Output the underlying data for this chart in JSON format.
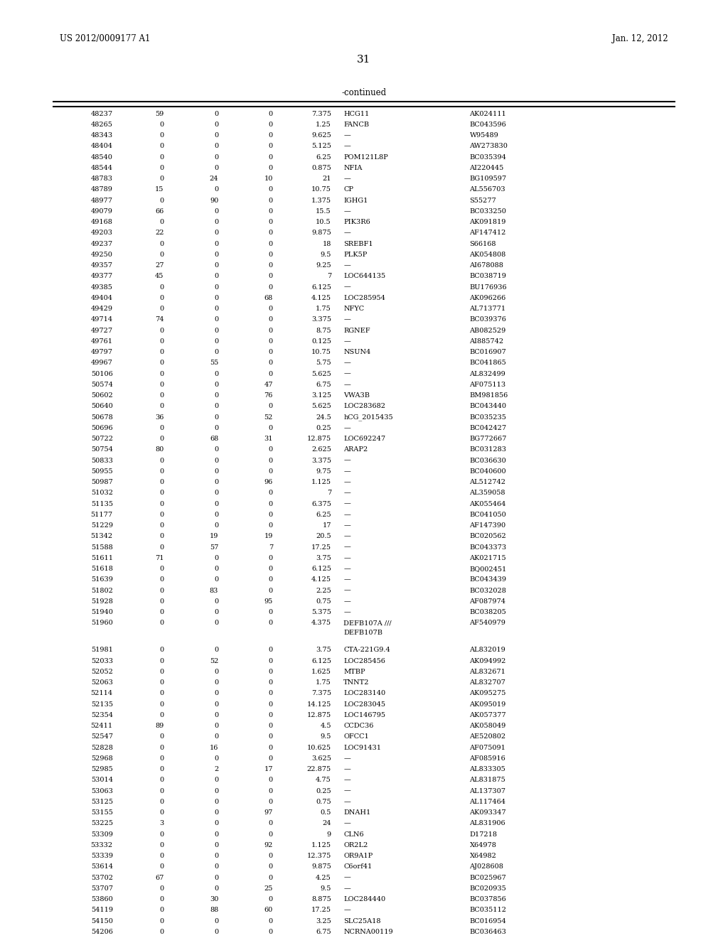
{
  "header_left": "US 2012/0009177 A1",
  "header_right": "Jan. 12, 2012",
  "page_number": "31",
  "continued_label": "-continued",
  "bg_color": "#ffffff",
  "text_color": "#000000",
  "rows": [
    [
      "48237",
      "59",
      "0",
      "0",
      "7.375",
      "HCG11",
      "AK024111"
    ],
    [
      "48265",
      "0",
      "0",
      "0",
      "1.25",
      "FANCB",
      "BC043596"
    ],
    [
      "48343",
      "0",
      "0",
      "0",
      "9.625",
      "—",
      "W95489"
    ],
    [
      "48404",
      "0",
      "0",
      "0",
      "5.125",
      "—",
      "AW273830"
    ],
    [
      "48540",
      "0",
      "0",
      "0",
      "6.25",
      "POM121L8P",
      "BC035394"
    ],
    [
      "48544",
      "0",
      "0",
      "0",
      "0.875",
      "NFIA",
      "AI220445"
    ],
    [
      "48783",
      "0",
      "24",
      "10",
      "21",
      "—",
      "BG109597"
    ],
    [
      "48789",
      "15",
      "0",
      "0",
      "10.75",
      "CP",
      "AL556703"
    ],
    [
      "48977",
      "0",
      "90",
      "0",
      "1.375",
      "IGHG1",
      "S55277"
    ],
    [
      "49079",
      "66",
      "0",
      "0",
      "15.5",
      "—",
      "BC033250"
    ],
    [
      "49168",
      "0",
      "0",
      "0",
      "10.5",
      "PIK3R6",
      "AK091819"
    ],
    [
      "49203",
      "22",
      "0",
      "0",
      "9.875",
      "—",
      "AF147412"
    ],
    [
      "49237",
      "0",
      "0",
      "0",
      "18",
      "SREBF1",
      "S66168"
    ],
    [
      "49250",
      "0",
      "0",
      "0",
      "9.5",
      "PLK5P",
      "AK054808"
    ],
    [
      "49357",
      "27",
      "0",
      "0",
      "9.25",
      "—",
      "AI678088"
    ],
    [
      "49377",
      "45",
      "0",
      "0",
      "7",
      "LOC644135",
      "BC038719"
    ],
    [
      "49385",
      "0",
      "0",
      "0",
      "6.125",
      "—",
      "BU176936"
    ],
    [
      "49404",
      "0",
      "0",
      "68",
      "4.125",
      "LOC285954",
      "AK096266"
    ],
    [
      "49429",
      "0",
      "0",
      "0",
      "1.75",
      "NFYC",
      "AL713771"
    ],
    [
      "49714",
      "74",
      "0",
      "0",
      "3.375",
      "—",
      "BC039376"
    ],
    [
      "49727",
      "0",
      "0",
      "0",
      "8.75",
      "RGNEF",
      "AB082529"
    ],
    [
      "49761",
      "0",
      "0",
      "0",
      "0.125",
      "—",
      "AI885742"
    ],
    [
      "49797",
      "0",
      "0",
      "0",
      "10.75",
      "NSUN4",
      "BC016907"
    ],
    [
      "49967",
      "0",
      "55",
      "0",
      "5.75",
      "—",
      "BC041865"
    ],
    [
      "50106",
      "0",
      "0",
      "0",
      "5.625",
      "—",
      "AL832499"
    ],
    [
      "50574",
      "0",
      "0",
      "47",
      "6.75",
      "—",
      "AF075113"
    ],
    [
      "50602",
      "0",
      "0",
      "76",
      "3.125",
      "VWA3B",
      "BM981856"
    ],
    [
      "50640",
      "0",
      "0",
      "0",
      "5.625",
      "LOC283682",
      "BC043440"
    ],
    [
      "50678",
      "36",
      "0",
      "52",
      "24.5",
      "hCG_2015435",
      "BC035235"
    ],
    [
      "50696",
      "0",
      "0",
      "0",
      "0.25",
      "—",
      "BC042427"
    ],
    [
      "50722",
      "0",
      "68",
      "31",
      "12.875",
      "LOC692247",
      "BG772667"
    ],
    [
      "50754",
      "80",
      "0",
      "0",
      "2.625",
      "ARAP2",
      "BC031283"
    ],
    [
      "50833",
      "0",
      "0",
      "0",
      "3.375",
      "—",
      "BC036630"
    ],
    [
      "50955",
      "0",
      "0",
      "0",
      "9.75",
      "—",
      "BC040600"
    ],
    [
      "50987",
      "0",
      "0",
      "96",
      "1.125",
      "—",
      "AL512742"
    ],
    [
      "51032",
      "0",
      "0",
      "0",
      "7",
      "—",
      "AL359058"
    ],
    [
      "51135",
      "0",
      "0",
      "0",
      "6.375",
      "—",
      "AK055464"
    ],
    [
      "51177",
      "0",
      "0",
      "0",
      "6.25",
      "—",
      "BC041050"
    ],
    [
      "51229",
      "0",
      "0",
      "0",
      "17",
      "—",
      "AF147390"
    ],
    [
      "51342",
      "0",
      "19",
      "19",
      "20.5",
      "—",
      "BC020562"
    ],
    [
      "51588",
      "0",
      "57",
      "7",
      "17.25",
      "—",
      "BC043373"
    ],
    [
      "51611",
      "71",
      "0",
      "0",
      "3.75",
      "—",
      "AK021715"
    ],
    [
      "51618",
      "0",
      "0",
      "0",
      "6.125",
      "—",
      "BQ002451"
    ],
    [
      "51639",
      "0",
      "0",
      "0",
      "4.125",
      "—",
      "BC043439"
    ],
    [
      "51802",
      "0",
      "83",
      "0",
      "2.25",
      "—",
      "BC032028"
    ],
    [
      "51928",
      "0",
      "0",
      "95",
      "0.75",
      "—",
      "AF087974"
    ],
    [
      "51940",
      "0",
      "0",
      "0",
      "5.375",
      "—",
      "BC038205"
    ],
    [
      "51960",
      "0",
      "0",
      "0",
      "4.375",
      "DEFB107A /// DEFB107B",
      "AF540979"
    ],
    [
      "51981",
      "0",
      "0",
      "0",
      "3.75",
      "CTA-221G9.4",
      "AL832019"
    ],
    [
      "52033",
      "0",
      "52",
      "0",
      "6.125",
      "LOC285456",
      "AK094992"
    ],
    [
      "52052",
      "0",
      "0",
      "0",
      "1.625",
      "MTBP",
      "AL832671"
    ],
    [
      "52063",
      "0",
      "0",
      "0",
      "1.75",
      "TNNT2",
      "AL832707"
    ],
    [
      "52114",
      "0",
      "0",
      "0",
      "7.375",
      "LOC283140",
      "AK095275"
    ],
    [
      "52135",
      "0",
      "0",
      "0",
      "14.125",
      "LOC283045",
      "AK095019"
    ],
    [
      "52354",
      "0",
      "0",
      "0",
      "12.875",
      "LOC146795",
      "AK057377"
    ],
    [
      "52411",
      "89",
      "0",
      "0",
      "4.5",
      "CCDC36",
      "AK058049"
    ],
    [
      "52547",
      "0",
      "0",
      "0",
      "9.5",
      "OFCC1",
      "AE520802"
    ],
    [
      "52828",
      "0",
      "16",
      "0",
      "10.625",
      "LOC91431",
      "AF075091"
    ],
    [
      "52968",
      "0",
      "0",
      "0",
      "3.625",
      "—",
      "AF085916"
    ],
    [
      "52985",
      "0",
      "2",
      "17",
      "22.875",
      "—",
      "AL833305"
    ],
    [
      "53014",
      "0",
      "0",
      "0",
      "4.75",
      "—",
      "AL831875"
    ],
    [
      "53063",
      "0",
      "0",
      "0",
      "0.25",
      "—",
      "AL137307"
    ],
    [
      "53125",
      "0",
      "0",
      "0",
      "0.75",
      "—",
      "AL117464"
    ],
    [
      "53155",
      "0",
      "0",
      "97",
      "0.5",
      "DNAH1",
      "AK093347"
    ],
    [
      "53225",
      "3",
      "0",
      "0",
      "24",
      "—",
      "AL831906"
    ],
    [
      "53309",
      "0",
      "0",
      "0",
      "9",
      "CLN6",
      "D17218"
    ],
    [
      "53332",
      "0",
      "0",
      "92",
      "1.125",
      "OR2L2",
      "X64978"
    ],
    [
      "53339",
      "0",
      "0",
      "0",
      "12.375",
      "OR9A1P",
      "X64982"
    ],
    [
      "53614",
      "0",
      "0",
      "0",
      "9.875",
      "C6orf41",
      "AJ028608"
    ],
    [
      "53702",
      "67",
      "0",
      "0",
      "4.25",
      "—",
      "BC025967"
    ],
    [
      "53707",
      "0",
      "0",
      "25",
      "9.5",
      "—",
      "BC020935"
    ],
    [
      "53860",
      "0",
      "30",
      "0",
      "8.875",
      "LOC284440",
      "BC037856"
    ],
    [
      "54119",
      "0",
      "88",
      "60",
      "17.25",
      "—",
      "BC035112"
    ],
    [
      "54150",
      "0",
      "0",
      "0",
      "3.25",
      "SLC25A18",
      "BC016954"
    ],
    [
      "54206",
      "0",
      "0",
      "0",
      "6.75",
      "NCRNA00119",
      "BC036463"
    ]
  ]
}
